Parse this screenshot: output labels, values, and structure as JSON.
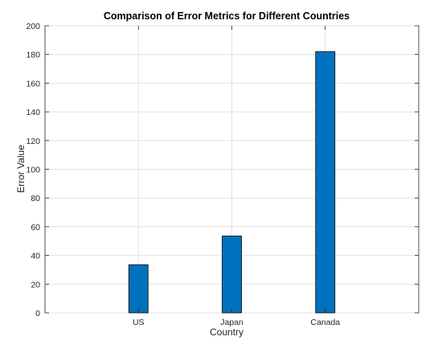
{
  "chart_data": {
    "type": "bar",
    "title": "Comparison of Error Metrics for Different Countries",
    "xlabel": "Country",
    "ylabel": "Error Value",
    "categories": [
      "US",
      "Japan",
      "Canada"
    ],
    "values": [
      33.5,
      53.5,
      182
    ],
    "ylim": [
      0,
      200
    ],
    "yticks": [
      "0",
      "20",
      "40",
      "60",
      "80",
      "100",
      "120",
      "140",
      "160",
      "180",
      "200"
    ],
    "grid": true,
    "legend": "none",
    "bar_color": "#0072BD"
  }
}
